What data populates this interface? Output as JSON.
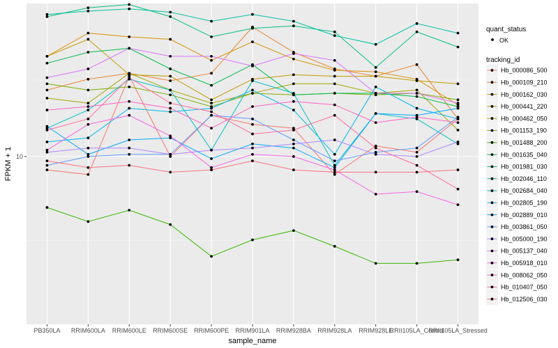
{
  "chart_data": {
    "type": "line",
    "xlabel": "sample_name",
    "ylabel": "FPKM + 1",
    "categories": [
      "PB350LA",
      "RRIM600LA",
      "RRIM600LE",
      "RRIM600SE",
      "RRIM600PE",
      "RRIM901LA",
      "RRIM928BA",
      "RRIM928LA",
      "RRIM928LE",
      "RRII105LA_Control",
      "RRII105LA_Stressed"
    ],
    "y_scale": "log10",
    "ylim": [
      4.6,
      20.3
    ],
    "y_ticks": [
      10
    ],
    "y_tick_labels": [
      "10"
    ],
    "quant_status": {
      "title": "quant_status",
      "label": "OK"
    },
    "legend_title": "tracking_id",
    "legend_position": "right",
    "series": [
      {
        "name": "Hb_000086_500",
        "color": "#F8766D",
        "values": [
          9.4,
          9.2,
          14.5,
          10.0,
          12.1,
          11.6,
          11.4,
          9.2,
          10.5,
          10.2,
          11.9
        ]
      },
      {
        "name": "Hb_000109_210",
        "color": "#EA8331",
        "values": [
          13.6,
          14.3,
          14.7,
          14.2,
          14.7,
          18.2,
          16.2,
          15.0,
          14.5,
          15.3,
          11.9
        ]
      },
      {
        "name": "Hb_000162_030",
        "color": "#D89000",
        "values": [
          15.9,
          17.7,
          17.4,
          17.2,
          15.6,
          17.0,
          15.7,
          14.9,
          14.8,
          14.3,
          12.7
        ]
      },
      {
        "name": "Hb_000441_220",
        "color": "#C09B00",
        "values": [
          15.9,
          17.2,
          14.6,
          14.5,
          13.0,
          14.3,
          14.6,
          14.5,
          14.5,
          14.2,
          14.0
        ]
      },
      {
        "name": "Hb_000462_050",
        "color": "#A3A500",
        "values": [
          13.1,
          12.8,
          14.7,
          13.6,
          12.8,
          13.4,
          14.0,
          14.0,
          13.4,
          13.6,
          11.3
        ]
      },
      {
        "name": "Hb_001153_190",
        "color": "#7CAE00",
        "values": [
          14.0,
          13.6,
          13.8,
          13.3,
          12.6,
          13.4,
          13.3,
          13.4,
          13.3,
          13.4,
          13.0
        ]
      },
      {
        "name": "Hb_001488_200",
        "color": "#39B600",
        "values": [
          7.9,
          7.4,
          7.8,
          7.3,
          6.3,
          6.8,
          7.1,
          6.6,
          6.1,
          6.1,
          6.2
        ]
      },
      {
        "name": "Hb_001635_040",
        "color": "#00BB4E",
        "values": [
          15.4,
          16.2,
          16.5,
          15.0,
          13.9,
          15.3,
          13.3,
          13.4,
          13.4,
          13.2,
          12.6
        ]
      },
      {
        "name": "Hb_001981_030",
        "color": "#00BF7D",
        "values": [
          19.1,
          19.9,
          20.2,
          19.1,
          17.4,
          18.1,
          18.3,
          17.8,
          15.1,
          17.8,
          16.6
        ]
      },
      {
        "name": "Hb_002046_110",
        "color": "#00C1A3",
        "values": [
          19.3,
          19.6,
          19.8,
          19.5,
          18.7,
          19.3,
          18.7,
          17.5,
          16.8,
          18.5,
          17.7
        ]
      },
      {
        "name": "Hb_002684_040",
        "color": "#00BFC4",
        "values": [
          11.4,
          12.4,
          14.3,
          13.6,
          10.3,
          14.2,
          13.4,
          9.6,
          12.2,
          11.9,
          10.6
        ]
      },
      {
        "name": "Hb_002805_190",
        "color": "#00B8E7",
        "values": [
          10.7,
          10.9,
          12.5,
          12.3,
          12.5,
          13.6,
          12.4,
          10.1,
          13.8,
          12.5,
          11.9
        ]
      },
      {
        "name": "Hb_002889_010",
        "color": "#00A9FF",
        "values": [
          11.5,
          10.1,
          10.8,
          10.9,
          9.9,
          10.6,
          10.4,
          9.5,
          12.2,
          12.1,
          12.5
        ]
      },
      {
        "name": "Hb_003861_050",
        "color": "#619CFF",
        "values": [
          9.6,
          10.0,
          10.1,
          10.1,
          12.1,
          11.9,
          10.8,
          9.8,
          10.2,
          10.4,
          12.0
        ]
      },
      {
        "name": "Hb_005000_190",
        "color": "#AE87FF",
        "values": [
          10.2,
          10.4,
          10.4,
          10.1,
          10.3,
          10.4,
          10.6,
          10.8,
          10.1,
          10.0,
          10.7
        ]
      },
      {
        "name": "Hb_005137_040",
        "color": "#DB72FB",
        "values": [
          14.4,
          15.0,
          16.5,
          15.9,
          15.9,
          15.2,
          16.1,
          15.6,
          13.4,
          13.4,
          12.8
        ]
      },
      {
        "name": "Hb_005918_010",
        "color": "#F564E3",
        "values": [
          10.3,
          11.6,
          12.1,
          11.0,
          9.5,
          10.1,
          10.0,
          9.4,
          8.4,
          8.5,
          8.0
        ]
      },
      {
        "name": "Hb_008062_050",
        "color": "#FF61C3",
        "values": [
          12.4,
          12.6,
          12.9,
          12.5,
          11.4,
          12.6,
          12.9,
          12.7,
          11.7,
          12.0,
          11.7
        ]
      },
      {
        "name": "Hb_010407_050",
        "color": "#FF699C",
        "values": [
          11.3,
          11.9,
          14.4,
          12.8,
          12.3,
          11.1,
          11.3,
          12.1,
          10.4,
          9.6,
          8.6
        ]
      },
      {
        "name": "Hb_012506_030",
        "color": "#FC717F",
        "values": [
          9.8,
          9.5,
          9.6,
          9.3,
          9.4,
          9.8,
          9.4,
          9.3,
          9.3,
          9.3,
          9.4
        ]
      }
    ]
  }
}
